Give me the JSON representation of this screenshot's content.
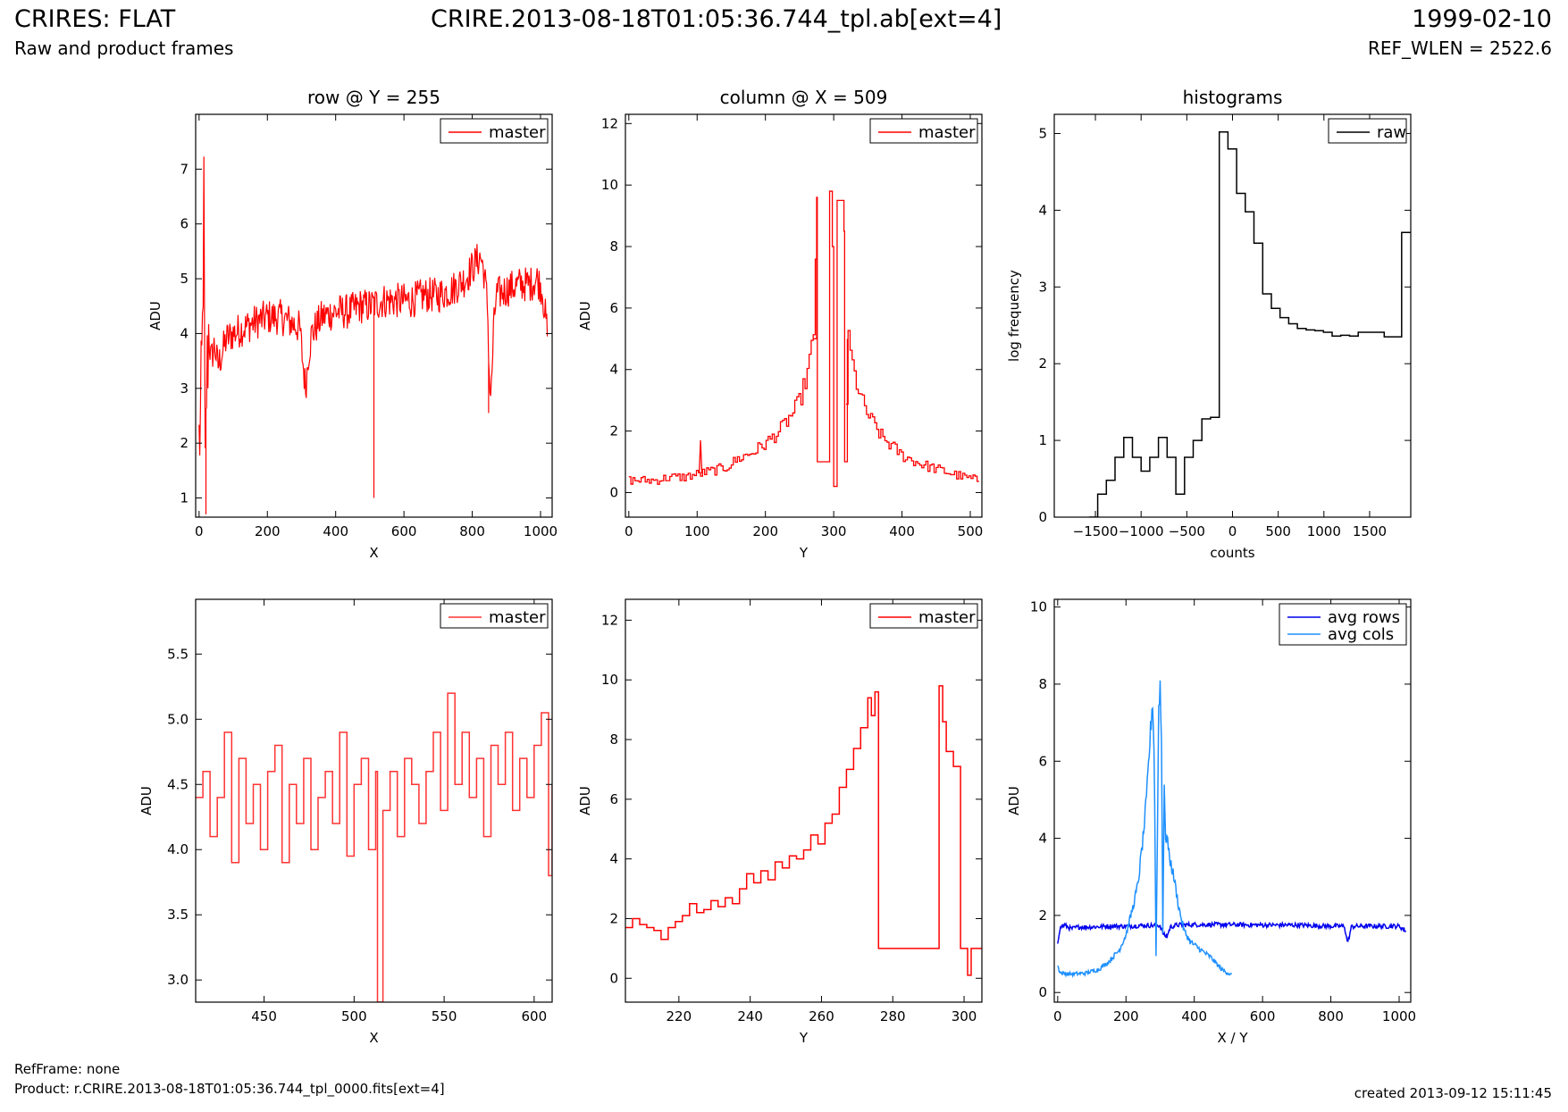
{
  "header": {
    "title": "CRIRES: FLAT",
    "subtitle": "Raw and product frames",
    "center_title": "CRIRE.2013-08-18T01:05:36.744_tpl.ab[ext=4]",
    "date": "1999-02-10",
    "ref_wlen": "REF_WLEN = 2522.6"
  },
  "footer": {
    "ref_frame": "RefFrame: none",
    "product": "Product: r.CRIRE.2013-08-18T01:05:36.744_tpl_0000.fits[ext=4]",
    "created": "created 2013-09-12 15:11:45"
  },
  "colors": {
    "red": "#ff0000",
    "red_light": "#ff3333",
    "black": "#000000",
    "blue": "#0000ee",
    "light_blue": "#1e90ff"
  },
  "chart_data": [
    {
      "id": "p1",
      "type": "line",
      "title": "row @ Y = 255",
      "xlabel": "X",
      "ylabel": "ADU",
      "xlim": [
        -10,
        1034
      ],
      "ylim": [
        0.65,
        8.0
      ],
      "xticks": [
        0,
        200,
        400,
        600,
        800,
        1000
      ],
      "yticks": [
        1,
        2,
        3,
        4,
        5,
        6,
        7
      ],
      "legend": {
        "position": "top-right",
        "entries": [
          {
            "name": "master",
            "color": "#ff0000"
          }
        ]
      },
      "series": [
        {
          "name": "master",
          "color": "#ff0000",
          "style": "noisy",
          "x": [
            0,
            5,
            10,
            14,
            18,
            22,
            28,
            35,
            45,
            55,
            65,
            80,
            100,
            130,
            160,
            200,
            240,
            270,
            295,
            305,
            312,
            320,
            330,
            360,
            400,
            440,
            470,
            500,
            540,
            580,
            620,
            660,
            700,
            740,
            780,
            810,
            825,
            835,
            845,
            850,
            855,
            862,
            870,
            900,
            940,
            970,
            990,
            1005,
            1020
          ],
          "y": [
            2.0,
            2.5,
            4.0,
            6.4,
            1.2,
            3.0,
            4.0,
            3.5,
            3.8,
            3.4,
            3.6,
            3.9,
            4.0,
            4.1,
            4.2,
            4.3,
            4.3,
            4.2,
            4.1,
            3.4,
            3.0,
            3.6,
            4.0,
            4.3,
            4.4,
            4.4,
            4.5,
            4.5,
            4.6,
            4.6,
            4.6,
            4.7,
            4.7,
            4.8,
            5.0,
            5.3,
            5.4,
            5.1,
            4.5,
            3.2,
            2.8,
            4.0,
            4.7,
            4.8,
            4.9,
            4.9,
            5.0,
            4.8,
            4.0
          ],
          "spikes": [
            {
              "x": 512,
              "y": 1.0
            },
            {
              "x": 20,
              "y": 0.7
            },
            {
              "x": 848,
              "y": 2.55
            }
          ]
        }
      ]
    },
    {
      "id": "p2",
      "type": "line",
      "title": "column @ X = 509",
      "xlabel": "Y",
      "ylabel": "ADU",
      "xlim": [
        -5,
        517
      ],
      "ylim": [
        -0.8,
        12.3
      ],
      "xticks": [
        0,
        100,
        200,
        300,
        400,
        500
      ],
      "yticks": [
        0,
        2,
        4,
        6,
        8,
        10,
        12
      ],
      "legend": {
        "position": "top-right",
        "entries": [
          {
            "name": "master",
            "color": "#ff0000"
          }
        ]
      },
      "series": [
        {
          "name": "master",
          "color": "#ff0000",
          "style": "step",
          "x": [
            0,
            20,
            40,
            60,
            80,
            100,
            120,
            140,
            160,
            180,
            200,
            220,
            240,
            250,
            260,
            270,
            275,
            276,
            293,
            294,
            298,
            300,
            305,
            315,
            316,
            320,
            330,
            340,
            350,
            370,
            400,
            430,
            460,
            490,
            510
          ],
          "y": [
            0.4,
            0.4,
            0.4,
            0.5,
            0.5,
            0.6,
            0.7,
            0.8,
            1.1,
            1.3,
            1.6,
            2.0,
            2.6,
            3.0,
            3.8,
            5.0,
            9.6,
            1.0,
            1.0,
            9.8,
            8.0,
            0.2,
            9.5,
            8.5,
            1.0,
            5.0,
            3.8,
            3.0,
            2.5,
            1.8,
            1.2,
            0.9,
            0.7,
            0.5,
            0.4
          ],
          "spikes": [
            {
              "x": 105,
              "y": 1.7
            }
          ]
        }
      ]
    },
    {
      "id": "p3",
      "type": "line",
      "title": "histograms",
      "xlabel": "counts",
      "ylabel": "log frequency",
      "xlim": [
        -1950,
        1950
      ],
      "ylim": [
        0,
        5.25
      ],
      "xticks": [
        -1500,
        -1000,
        -500,
        0,
        500,
        1000,
        1500
      ],
      "yticks": [
        0,
        1,
        2,
        3,
        4,
        5
      ],
      "xtick_labels": [
        "−1500",
        "−1000",
        "−500",
        "0",
        "500",
        "1000",
        "1500"
      ],
      "legend": {
        "position": "top-right",
        "entries": [
          {
            "name": "raw",
            "color": "#000000"
          }
        ]
      },
      "series": [
        {
          "name": "raw",
          "color": "#000000",
          "style": "hist",
          "x": [
            -1570,
            -1475,
            -1380,
            -1285,
            -1190,
            -1095,
            -1000,
            -905,
            -810,
            -715,
            -620,
            -525,
            -430,
            -335,
            -240,
            -145,
            -50,
            45,
            140,
            235,
            330,
            425,
            520,
            615,
            710,
            805,
            900,
            995,
            1090,
            1185,
            1280,
            1375,
            1470,
            1565,
            1660,
            1755,
            1850,
            1950
          ],
          "y": [
            0,
            0.3,
            0.48,
            0.78,
            1.04,
            0.78,
            0.6,
            0.78,
            1.04,
            0.78,
            0.3,
            0.78,
            1.0,
            1.28,
            1.3,
            5.02,
            4.8,
            4.22,
            3.98,
            3.57,
            2.91,
            2.72,
            2.6,
            2.52,
            2.46,
            2.44,
            2.43,
            2.41,
            2.36,
            2.37,
            2.36,
            2.41,
            2.41,
            2.41,
            2.35,
            2.35,
            3.71,
            3.71
          ]
        }
      ]
    },
    {
      "id": "p4",
      "type": "line",
      "title": "",
      "xlabel": "X",
      "ylabel": "ADU",
      "xlim": [
        412,
        610
      ],
      "ylim": [
        2.83,
        5.92
      ],
      "xticks": [
        450,
        500,
        550,
        600
      ],
      "yticks": [
        3.0,
        3.5,
        4.0,
        4.5,
        5.0,
        5.5
      ],
      "ytick_labels": [
        "3.0",
        "3.5",
        "4.0",
        "4.5",
        "5.0",
        "5.5"
      ],
      "legend": {
        "position": "top-right",
        "entries": [
          {
            "name": "master",
            "color": "#ff3333"
          }
        ]
      },
      "series": [
        {
          "name": "master",
          "color": "#ff3333",
          "style": "step",
          "x": [
            412,
            416,
            420,
            424,
            428,
            432,
            436,
            440,
            444,
            448,
            452,
            456,
            460,
            464,
            468,
            472,
            476,
            480,
            484,
            488,
            492,
            496,
            500,
            504,
            508,
            512,
            513,
            516,
            520,
            524,
            528,
            532,
            536,
            540,
            544,
            548,
            552,
            556,
            560,
            564,
            568,
            572,
            576,
            580,
            584,
            588,
            592,
            596,
            600,
            604,
            608,
            610
          ],
          "y": [
            4.4,
            4.6,
            4.1,
            4.4,
            4.9,
            3.9,
            4.7,
            4.2,
            4.5,
            4.0,
            4.6,
            4.8,
            3.9,
            4.5,
            4.2,
            4.7,
            4.0,
            4.4,
            4.6,
            4.2,
            4.9,
            3.95,
            4.5,
            4.7,
            4.0,
            4.6,
            2.83,
            4.3,
            4.6,
            4.1,
            4.7,
            4.5,
            4.2,
            4.6,
            4.9,
            4.3,
            5.2,
            4.5,
            4.9,
            4.4,
            4.7,
            4.1,
            4.8,
            4.5,
            4.9,
            4.3,
            4.7,
            4.4,
            4.8,
            5.05,
            3.8,
            4.5
          ]
        }
      ]
    },
    {
      "id": "p5",
      "type": "line",
      "title": "",
      "xlabel": "Y",
      "ylabel": "ADU",
      "xlim": [
        205,
        305
      ],
      "ylim": [
        -0.8,
        12.7
      ],
      "xticks": [
        220,
        240,
        260,
        280,
        300
      ],
      "yticks": [
        0,
        2,
        4,
        6,
        8,
        10,
        12
      ],
      "legend": {
        "position": "top-right",
        "entries": [
          {
            "name": "master",
            "color": "#ff0000"
          }
        ]
      },
      "series": [
        {
          "name": "master",
          "color": "#ff0000",
          "style": "step",
          "x": [
            205,
            207,
            209,
            211,
            213,
            215,
            217,
            219,
            221,
            223,
            225,
            227,
            229,
            231,
            233,
            235,
            237,
            239,
            241,
            243,
            245,
            247,
            249,
            251,
            253,
            255,
            257,
            259,
            261,
            263,
            265,
            267,
            269,
            271,
            273,
            274,
            275,
            276,
            292,
            293,
            294,
            295,
            297,
            298,
            299,
            300,
            301,
            302,
            303,
            305
          ],
          "y": [
            1.7,
            2.0,
            1.8,
            1.7,
            1.6,
            1.3,
            1.7,
            1.9,
            2.1,
            2.5,
            2.2,
            2.3,
            2.6,
            2.4,
            2.7,
            2.5,
            3.0,
            3.5,
            3.2,
            3.6,
            3.3,
            3.9,
            3.7,
            4.1,
            4.0,
            4.3,
            4.8,
            4.5,
            5.2,
            5.5,
            6.4,
            7.0,
            7.7,
            8.4,
            9.4,
            8.8,
            9.6,
            1.0,
            1.0,
            9.8,
            8.6,
            7.6,
            7.1,
            7.1,
            1.0,
            1.0,
            0.1,
            1.0,
            1.0,
            1.0
          ]
        }
      ]
    },
    {
      "id": "p6",
      "type": "line",
      "title": "",
      "xlabel": "X / Y",
      "ylabel": "ADU",
      "xlim": [
        -10,
        1034
      ],
      "ylim": [
        -0.25,
        10.2
      ],
      "xticks": [
        0,
        200,
        400,
        600,
        800,
        1000
      ],
      "yticks": [
        0,
        2,
        4,
        6,
        8,
        10
      ],
      "legend": {
        "position": "top-right",
        "entries": [
          {
            "name": "avg rows",
            "color": "#0000ee"
          },
          {
            "name": "avg cols",
            "color": "#1e90ff"
          }
        ]
      },
      "series": [
        {
          "name": "avg rows",
          "color": "#0000ee",
          "style": "noisy-small",
          "x": [
            0,
            5,
            10,
            20,
            40,
            60,
            100,
            150,
            200,
            250,
            300,
            310,
            320,
            330,
            350,
            400,
            500,
            600,
            700,
            800,
            840,
            845,
            850,
            855,
            860,
            870,
            900,
            950,
            1000,
            1020
          ],
          "y": [
            1.3,
            1.6,
            1.7,
            1.75,
            1.65,
            1.7,
            1.7,
            1.72,
            1.72,
            1.74,
            1.74,
            1.5,
            1.45,
            1.7,
            1.75,
            1.76,
            1.76,
            1.75,
            1.75,
            1.72,
            1.72,
            1.45,
            1.3,
            1.5,
            1.7,
            1.72,
            1.72,
            1.72,
            1.72,
            1.6
          ]
        },
        {
          "name": "avg cols",
          "color": "#1e90ff",
          "style": "noisy-small",
          "x": [
            0,
            3,
            10,
            40,
            80,
            120,
            150,
            180,
            200,
            220,
            235,
            250,
            260,
            270,
            278,
            283,
            288,
            292,
            296,
            300,
            304,
            308,
            312,
            316,
            320,
            325,
            330,
            340,
            355,
            370,
            390,
            420,
            450,
            480,
            500,
            510
          ],
          "y": [
            0.7,
            0.6,
            0.5,
            0.48,
            0.5,
            0.6,
            0.8,
            1.1,
            1.5,
            2.2,
            2.8,
            4.0,
            5.0,
            6.5,
            7.6,
            6.0,
            1.0,
            4.0,
            7.5,
            8.0,
            6.5,
            1.6,
            5.5,
            3.8,
            4.2,
            3.6,
            3.4,
            3.0,
            2.2,
            1.6,
            1.3,
            1.1,
            0.9,
            0.6,
            0.5,
            0.45
          ]
        }
      ]
    }
  ]
}
